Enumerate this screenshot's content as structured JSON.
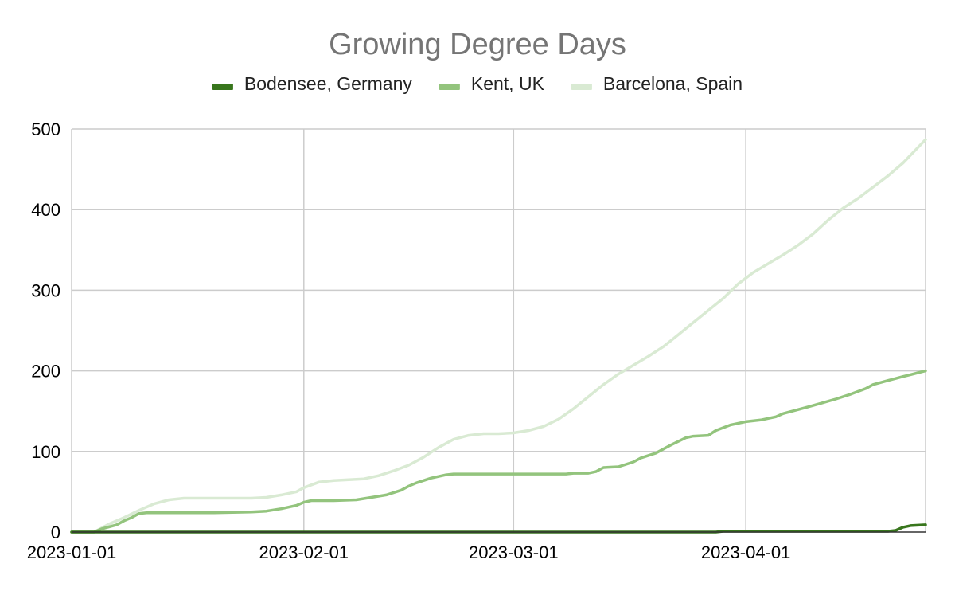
{
  "chart_data": {
    "type": "line",
    "title": "Growing Degree Days",
    "xlabel": "",
    "ylabel": "",
    "x_axis": "date",
    "xlim": [
      "2023-01-01",
      "2023-04-25"
    ],
    "ylim": [
      0,
      500
    ],
    "x_ticks": [
      "2023-01-01",
      "2023-02-01",
      "2023-03-01",
      "2023-04-01"
    ],
    "y_ticks": [
      0,
      100,
      200,
      300,
      400,
      500
    ],
    "grid": true,
    "legend": "top",
    "series": [
      {
        "name": "Bodensee, Germany",
        "color": "#38761d",
        "points": [
          [
            "2023-01-01",
            0
          ],
          [
            "2023-03-28",
            0
          ],
          [
            "2023-03-29",
            1
          ],
          [
            "2023-04-20",
            1
          ],
          [
            "2023-04-21",
            2
          ],
          [
            "2023-04-22",
            6
          ],
          [
            "2023-04-23",
            8
          ],
          [
            "2023-04-25",
            9
          ]
        ]
      },
      {
        "name": "Kent, UK",
        "color": "#93c47d",
        "points": [
          [
            "2023-01-01",
            0
          ],
          [
            "2023-01-04",
            0
          ],
          [
            "2023-01-05",
            4
          ],
          [
            "2023-01-07",
            9
          ],
          [
            "2023-01-08",
            14
          ],
          [
            "2023-01-09",
            18
          ],
          [
            "2023-01-10",
            23
          ],
          [
            "2023-01-11",
            24
          ],
          [
            "2023-01-15",
            24
          ],
          [
            "2023-01-20",
            24
          ],
          [
            "2023-01-25",
            25
          ],
          [
            "2023-01-27",
            26
          ],
          [
            "2023-01-29",
            29
          ],
          [
            "2023-01-31",
            33
          ],
          [
            "2023-02-01",
            37
          ],
          [
            "2023-02-02",
            39
          ],
          [
            "2023-02-05",
            39
          ],
          [
            "2023-02-08",
            40
          ],
          [
            "2023-02-10",
            43
          ],
          [
            "2023-02-12",
            46
          ],
          [
            "2023-02-14",
            52
          ],
          [
            "2023-02-15",
            57
          ],
          [
            "2023-02-16",
            61
          ],
          [
            "2023-02-18",
            67
          ],
          [
            "2023-02-20",
            71
          ],
          [
            "2023-02-21",
            72
          ],
          [
            "2023-02-25",
            72
          ],
          [
            "2023-03-01",
            72
          ],
          [
            "2023-03-05",
            72
          ],
          [
            "2023-03-08",
            72
          ],
          [
            "2023-03-09",
            73
          ],
          [
            "2023-03-11",
            73
          ],
          [
            "2023-03-12",
            75
          ],
          [
            "2023-03-13",
            80
          ],
          [
            "2023-03-15",
            81
          ],
          [
            "2023-03-17",
            87
          ],
          [
            "2023-03-18",
            92
          ],
          [
            "2023-03-20",
            98
          ],
          [
            "2023-03-22",
            108
          ],
          [
            "2023-03-24",
            117
          ],
          [
            "2023-03-25",
            119
          ],
          [
            "2023-03-27",
            120
          ],
          [
            "2023-03-28",
            126
          ],
          [
            "2023-03-30",
            133
          ],
          [
            "2023-04-01",
            137
          ],
          [
            "2023-04-03",
            139
          ],
          [
            "2023-04-04",
            141
          ],
          [
            "2023-04-05",
            143
          ],
          [
            "2023-04-06",
            147
          ],
          [
            "2023-04-08",
            152
          ],
          [
            "2023-04-10",
            157
          ],
          [
            "2023-04-13",
            165
          ],
          [
            "2023-04-15",
            171
          ],
          [
            "2023-04-17",
            178
          ],
          [
            "2023-04-18",
            183
          ],
          [
            "2023-04-20",
            188
          ],
          [
            "2023-04-22",
            193
          ],
          [
            "2023-04-25",
            200
          ]
        ]
      },
      {
        "name": "Barcelona, Spain",
        "color": "#d9ead3",
        "points": [
          [
            "2023-01-01",
            0
          ],
          [
            "2023-01-04",
            0
          ],
          [
            "2023-01-05",
            5
          ],
          [
            "2023-01-06",
            10
          ],
          [
            "2023-01-08",
            18
          ],
          [
            "2023-01-10",
            27
          ],
          [
            "2023-01-12",
            35
          ],
          [
            "2023-01-14",
            40
          ],
          [
            "2023-01-16",
            42
          ],
          [
            "2023-01-20",
            42
          ],
          [
            "2023-01-25",
            42
          ],
          [
            "2023-01-27",
            43
          ],
          [
            "2023-01-29",
            46
          ],
          [
            "2023-01-31",
            50
          ],
          [
            "2023-02-01",
            55
          ],
          [
            "2023-02-03",
            62
          ],
          [
            "2023-02-05",
            64
          ],
          [
            "2023-02-07",
            65
          ],
          [
            "2023-02-09",
            66
          ],
          [
            "2023-02-11",
            70
          ],
          [
            "2023-02-13",
            76
          ],
          [
            "2023-02-15",
            83
          ],
          [
            "2023-02-17",
            93
          ],
          [
            "2023-02-19",
            105
          ],
          [
            "2023-02-21",
            115
          ],
          [
            "2023-02-23",
            120
          ],
          [
            "2023-02-25",
            122
          ],
          [
            "2023-02-27",
            122
          ],
          [
            "2023-03-01",
            123
          ],
          [
            "2023-03-03",
            126
          ],
          [
            "2023-03-05",
            131
          ],
          [
            "2023-03-07",
            140
          ],
          [
            "2023-03-09",
            153
          ],
          [
            "2023-03-11",
            168
          ],
          [
            "2023-03-13",
            183
          ],
          [
            "2023-03-15",
            196
          ],
          [
            "2023-03-17",
            207
          ],
          [
            "2023-03-19",
            218
          ],
          [
            "2023-03-21",
            230
          ],
          [
            "2023-03-23",
            245
          ],
          [
            "2023-03-25",
            260
          ],
          [
            "2023-03-27",
            275
          ],
          [
            "2023-03-29",
            290
          ],
          [
            "2023-03-31",
            308
          ],
          [
            "2023-04-02",
            322
          ],
          [
            "2023-04-04",
            333
          ],
          [
            "2023-04-06",
            344
          ],
          [
            "2023-04-08",
            356
          ],
          [
            "2023-04-10",
            370
          ],
          [
            "2023-04-12",
            387
          ],
          [
            "2023-04-14",
            402
          ],
          [
            "2023-04-16",
            414
          ],
          [
            "2023-04-18",
            428
          ],
          [
            "2023-04-20",
            442
          ],
          [
            "2023-04-22",
            458
          ],
          [
            "2023-04-25",
            487
          ]
        ]
      }
    ]
  }
}
